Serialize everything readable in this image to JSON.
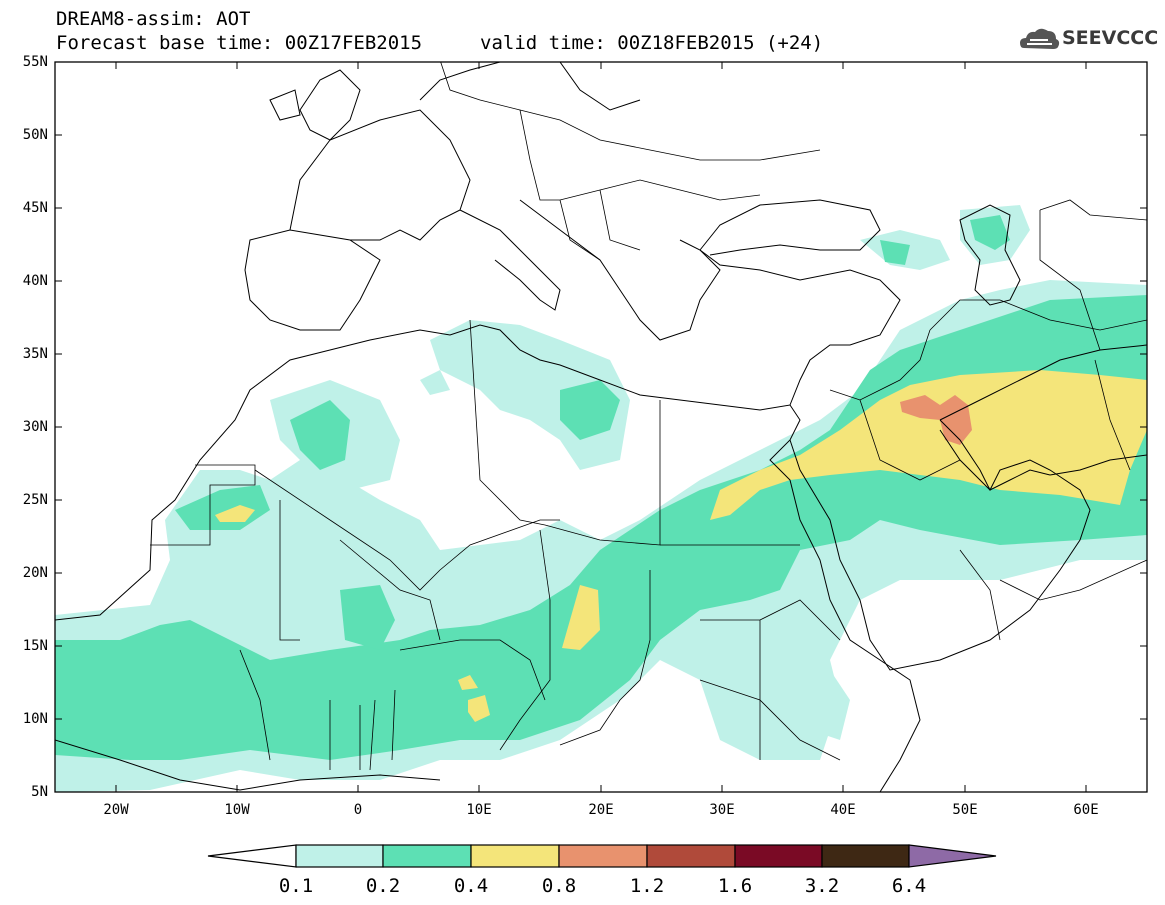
{
  "header": {
    "line1": "DREAM8-assim: AOT",
    "line2_base": "Forecast base time: 00Z17FEB2015",
    "line2_valid": "valid time: 00Z18FEB2015 (+24)",
    "logo_text": "SEEVCCC"
  },
  "map": {
    "type": "heatmap",
    "variable": "AOT",
    "projection": "lat-lon",
    "lon_range": [
      -25,
      65
    ],
    "lat_range": [
      5,
      55
    ],
    "lat_ticks": [
      "5N",
      "10N",
      "15N",
      "20N",
      "25N",
      "30N",
      "35N",
      "40N",
      "45N",
      "50N",
      "55N"
    ],
    "lon_ticks": [
      "20W",
      "10W",
      "0",
      "10E",
      "20E",
      "30E",
      "40E",
      "50E",
      "60E"
    ]
  },
  "colorbar": {
    "labels": [
      "0.1",
      "0.2",
      "0.4",
      "0.8",
      "1.2",
      "1.6",
      "3.2",
      "6.4"
    ],
    "colors": [
      "#ffffff",
      "#bff1e8",
      "#5de0b4",
      "#f4e57a",
      "#e8926e",
      "#b04a3a",
      "#7a0a25",
      "#3e2814",
      "#8e6aa6"
    ]
  }
}
